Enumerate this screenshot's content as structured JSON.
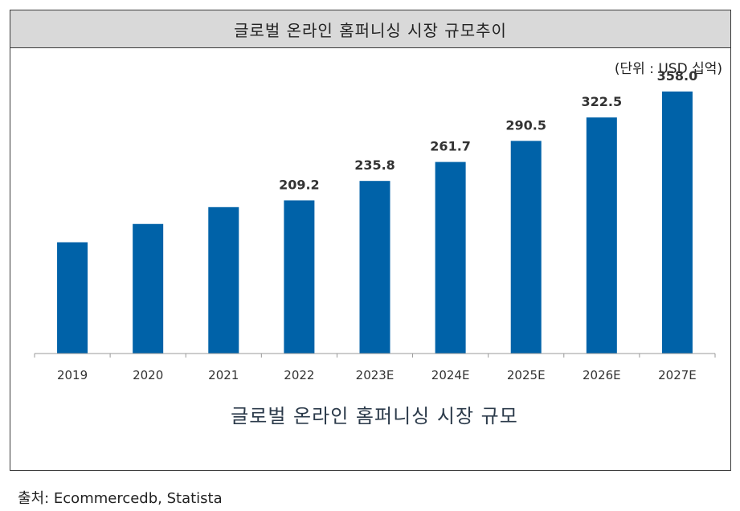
{
  "header": {
    "title": "글로벌 온라인 홈퍼니싱 시장 규모추이"
  },
  "unit_label": "(단위 : USD 십억)",
  "source": "출처: Ecommercedb, Statista",
  "colors": {
    "bar": "#0062a8",
    "axis": "#999999",
    "title_bg": "#d9d9d9"
  },
  "chart_data": {
    "type": "bar",
    "title": "글로벌 온라인 홈퍼니싱 시장 규모추이",
    "xlabel": "글로벌 온라인 홈퍼니싱 시장 규모",
    "ylabel": "",
    "unit": "USD 십억",
    "categories": [
      "2019",
      "2020",
      "2021",
      "2022",
      "2023E",
      "2024E",
      "2025E",
      "2026E",
      "2027E"
    ],
    "values": [
      152,
      177,
      200,
      209.2,
      235.8,
      261.7,
      290.5,
      322.5,
      358.0
    ],
    "labels": [
      "",
      "",
      "",
      "209.2",
      "235.8",
      "261.7",
      "290.5",
      "322.5",
      "358.0"
    ],
    "ylim": [
      0,
      382
    ],
    "grid": false,
    "legend": "none"
  }
}
